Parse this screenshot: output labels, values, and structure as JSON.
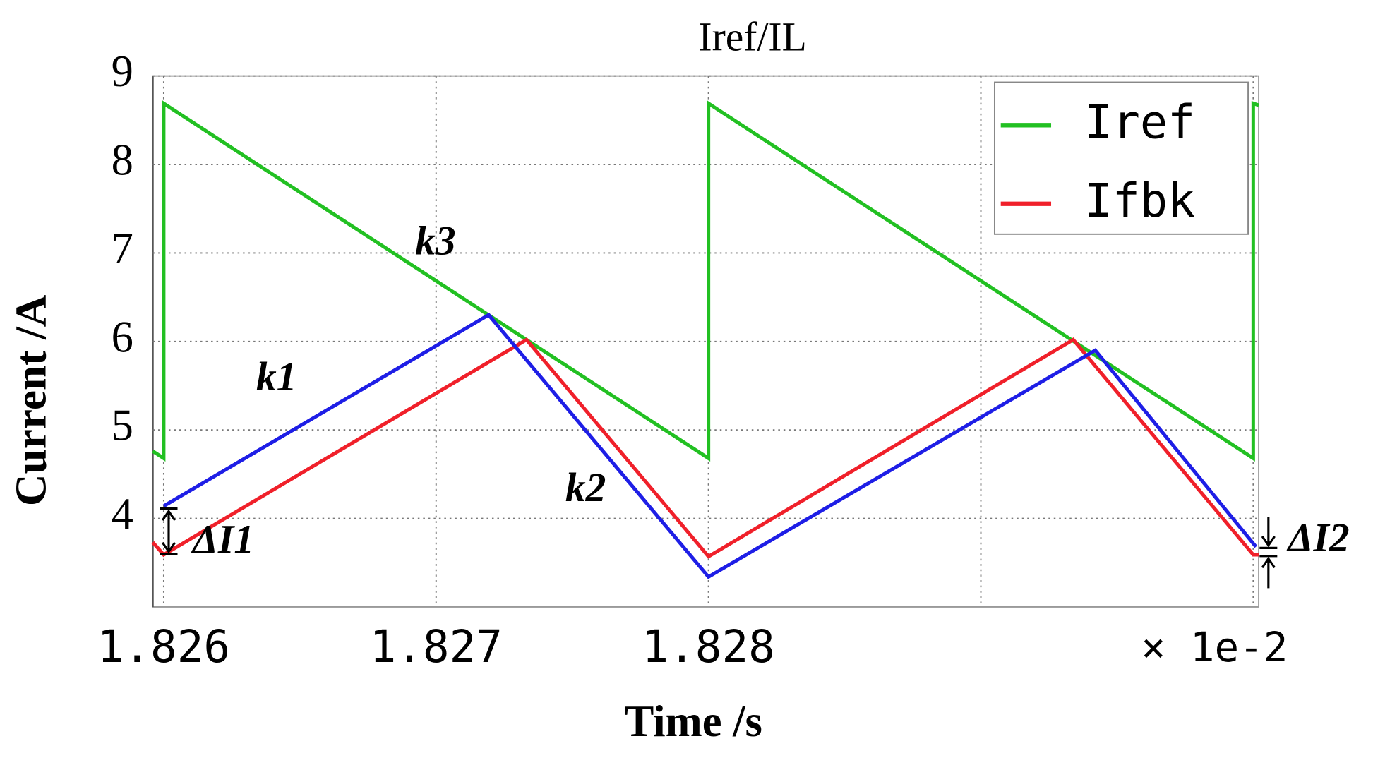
{
  "chart_data": {
    "type": "line",
    "title": "Iref/IL",
    "x_label": "Time /s",
    "y_label": "Current /A",
    "x_multiplier": "× 1e-2",
    "xlim": [
      1.82596,
      1.83002
    ],
    "ylim": [
      3,
      9
    ],
    "xticks": [
      1.826,
      1.827,
      1.828,
      {
        "value": 1.829,
        "label": null
      },
      {
        "value": 1.83,
        "label": null
      }
    ],
    "yticks": [
      4,
      5,
      6,
      7,
      8,
      9
    ],
    "grid": true,
    "legend": "upper right",
    "series": [
      {
        "name": "Iref",
        "color": "#22c022",
        "x": [
          1.82596,
          1.826,
          1.826,
          1.828,
          1.828,
          1.83,
          1.83,
          1.83002
        ],
        "values": [
          4.76,
          4.68,
          8.69,
          4.68,
          8.69,
          4.68,
          8.69,
          8.67
        ]
      },
      {
        "name": "Ifbk",
        "color": "#f0202a",
        "x": [
          1.82596,
          1.826,
          1.827332,
          1.828,
          1.829339,
          1.83,
          1.83002
        ],
        "values": [
          3.73,
          3.59,
          6.02,
          3.57,
          6.02,
          3.59,
          3.59
        ]
      },
      {
        "color": "#1e1ee6",
        "x": [
          1.826,
          1.827193,
          1.828,
          1.82942,
          1.83001
        ],
        "values": [
          4.14,
          6.3,
          3.34,
          5.9,
          3.68
        ]
      }
    ],
    "annotations": [
      "k3",
      "k1",
      "k2",
      "ΔI1",
      "ΔI2"
    ]
  }
}
